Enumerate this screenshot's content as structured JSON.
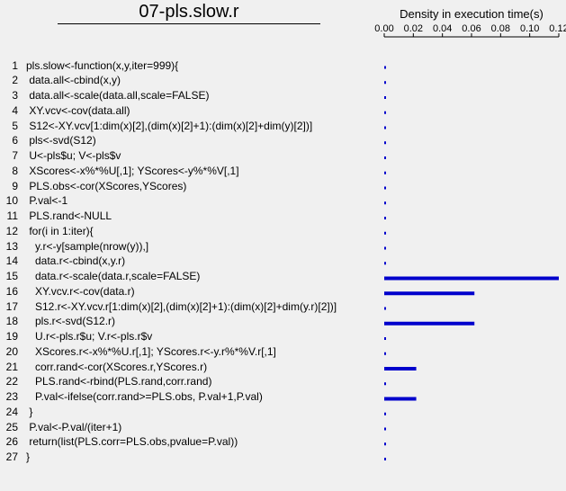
{
  "file_title": "07-pls.slow.r",
  "code_lines": [
    {
      "n": "1",
      "text": "pls.slow<-function(x,y,iter=999){"
    },
    {
      "n": "2",
      "text": " data.all<-cbind(x,y)"
    },
    {
      "n": "3",
      "text": " data.all<-scale(data.all,scale=FALSE)"
    },
    {
      "n": "4",
      "text": " XY.vcv<-cov(data.all)"
    },
    {
      "n": "5",
      "text": " S12<-XY.vcv[1:dim(x)[2],(dim(x)[2]+1):(dim(x)[2]+dim(y)[2])]"
    },
    {
      "n": "6",
      "text": " pls<-svd(S12)"
    },
    {
      "n": "7",
      "text": " U<-pls$u; V<-pls$v"
    },
    {
      "n": "8",
      "text": " XScores<-x%*%U[,1]; YScores<-y%*%V[,1]"
    },
    {
      "n": "9",
      "text": " PLS.obs<-cor(XScores,YScores)"
    },
    {
      "n": "10",
      "text": " P.val<-1"
    },
    {
      "n": "11",
      "text": " PLS.rand<-NULL"
    },
    {
      "n": "12",
      "text": " for(i in 1:iter){"
    },
    {
      "n": "13",
      "text": "   y.r<-y[sample(nrow(y)),]"
    },
    {
      "n": "14",
      "text": "   data.r<-cbind(x,y.r)"
    },
    {
      "n": "15",
      "text": "   data.r<-scale(data.r,scale=FALSE)"
    },
    {
      "n": "16",
      "text": "   XY.vcv.r<-cov(data.r)"
    },
    {
      "n": "17",
      "text": "   S12.r<-XY.vcv.r[1:dim(x)[2],(dim(x)[2]+1):(dim(x)[2]+dim(y.r)[2])]"
    },
    {
      "n": "18",
      "text": "   pls.r<-svd(S12.r)"
    },
    {
      "n": "19",
      "text": "   U.r<-pls.r$u; V.r<-pls.r$v"
    },
    {
      "n": "20",
      "text": "   XScores.r<-x%*%U.r[,1]; YScores.r<-y.r%*%V.r[,1]"
    },
    {
      "n": "21",
      "text": "   corr.rand<-cor(XScores.r,YScores.r)"
    },
    {
      "n": "22",
      "text": "   PLS.rand<-rbind(PLS.rand,corr.rand)"
    },
    {
      "n": "23",
      "text": "   P.val<-ifelse(corr.rand>=PLS.obs, P.val+1,P.val)"
    },
    {
      "n": "24",
      "text": " }"
    },
    {
      "n": "25",
      "text": " P.val<-P.val/(iter+1)"
    },
    {
      "n": "26",
      "text": " return(list(PLS.corr=PLS.obs,pvalue=P.val))"
    },
    {
      "n": "27",
      "text": "}"
    }
  ],
  "chart_data": {
    "type": "bar",
    "orientation": "horizontal",
    "title": "Density in execution time(s)",
    "xlabel": "",
    "ylabel": "",
    "xlim": [
      0,
      0.12
    ],
    "tick_labels": [
      "0.00",
      "0.02",
      "0.04",
      "0.06",
      "0.08",
      "0.10",
      "0.12"
    ],
    "tick_values": [
      0,
      0.02,
      0.04,
      0.06,
      0.08,
      0.1,
      0.12
    ],
    "categories": [
      "1",
      "2",
      "3",
      "4",
      "5",
      "6",
      "7",
      "8",
      "9",
      "10",
      "11",
      "12",
      "13",
      "14",
      "15",
      "16",
      "17",
      "18",
      "19",
      "20",
      "21",
      "22",
      "23",
      "24",
      "25",
      "26",
      "27"
    ],
    "values": [
      0,
      0,
      0,
      0,
      0,
      0,
      0,
      0,
      0,
      0,
      0,
      0,
      0,
      0,
      0.12,
      0.062,
      0,
      0.062,
      0,
      0,
      0.022,
      0,
      0.022,
      0,
      0,
      0,
      0
    ],
    "bar_color": "#0000cc",
    "grid": false,
    "legend": "none"
  }
}
